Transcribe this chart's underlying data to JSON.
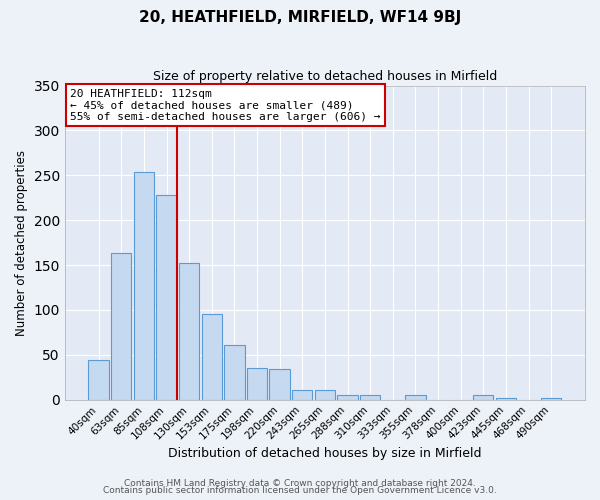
{
  "title": "20, HEATHFIELD, MIRFIELD, WF14 9BJ",
  "subtitle": "Size of property relative to detached houses in Mirfield",
  "xlabel": "Distribution of detached houses by size in Mirfield",
  "ylabel": "Number of detached properties",
  "bar_labels": [
    "40sqm",
    "63sqm",
    "85sqm",
    "108sqm",
    "130sqm",
    "153sqm",
    "175sqm",
    "198sqm",
    "220sqm",
    "243sqm",
    "265sqm",
    "288sqm",
    "310sqm",
    "333sqm",
    "355sqm",
    "378sqm",
    "400sqm",
    "423sqm",
    "445sqm",
    "468sqm",
    "490sqm"
  ],
  "bar_values": [
    44,
    164,
    254,
    228,
    152,
    96,
    61,
    35,
    34,
    11,
    11,
    5,
    5,
    0,
    5,
    0,
    0,
    5,
    2,
    0,
    2
  ],
  "bar_color": "#c5d9f0",
  "bar_edge_color": "#5b9bd5",
  "vline_color": "#cc0000",
  "vline_bar_index": 3,
  "ylim": [
    0,
    350
  ],
  "yticks": [
    0,
    50,
    100,
    150,
    200,
    250,
    300,
    350
  ],
  "annotation_title": "20 HEATHFIELD: 112sqm",
  "annotation_line1": "← 45% of detached houses are smaller (489)",
  "annotation_line2": "55% of semi-detached houses are larger (606) →",
  "annotation_box_color": "#cc0000",
  "footer1": "Contains HM Land Registry data © Crown copyright and database right 2024.",
  "footer2": "Contains public sector information licensed under the Open Government Licence v3.0.",
  "bg_color": "#edf2f9",
  "plot_bg_color": "#e4eaf5"
}
